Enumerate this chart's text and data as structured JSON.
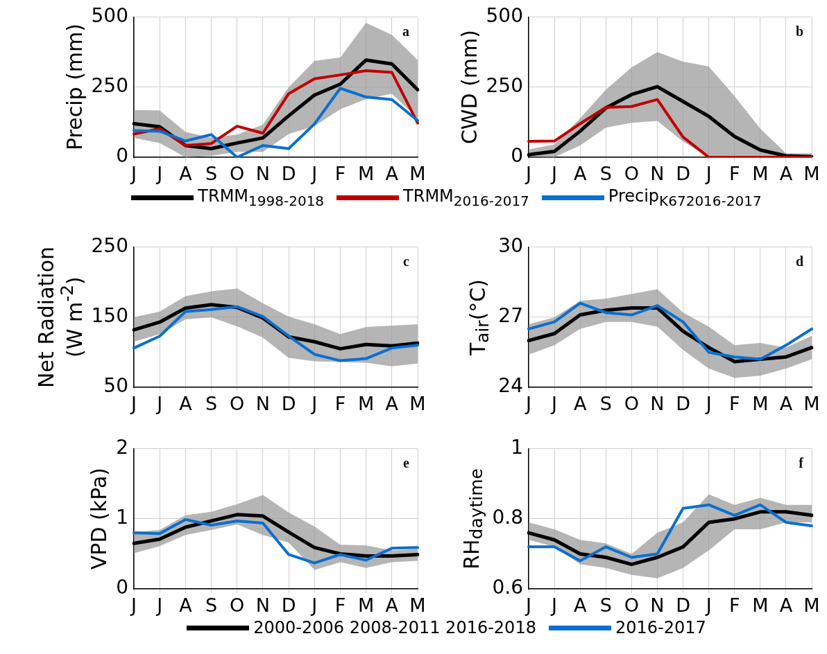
{
  "chart_data": [
    {
      "type": "line",
      "ylabel": "Precip (mm)",
      "categories": [
        "J",
        "J",
        "A",
        "S",
        "O",
        "N",
        "D",
        "J",
        "F",
        "M",
        "A",
        "M"
      ],
      "ylim": [
        0,
        500
      ],
      "yticks": [
        0,
        250,
        500
      ],
      "grid": true,
      "legend": "bottom",
      "annotations": [
        "a"
      ],
      "series": [
        {
          "name": "TRMM$_{1998-2018}$",
          "color": "#000000",
          "values": [
            120,
            109,
            42,
            31,
            51,
            69,
            148,
            222,
            261,
            347,
            333,
            241
          ],
          "lower": [
            69,
            51,
            0,
            5,
            20,
            19,
            83,
            111,
            171,
            208,
            227,
            139
          ],
          "upper": [
            169,
            167,
            90,
            70,
            81,
            116,
            250,
            344,
            356,
            480,
            437,
            347
          ]
        },
        {
          "name": "TRMM$_{2016-2017}$",
          "color": "#c00000",
          "values": [
            83,
            102,
            42,
            49,
            111,
            86,
            227,
            280,
            294,
            309,
            303,
            122
          ]
        },
        {
          "name": "Precip$_{K672016-2017}$",
          "color": "#0a6fd0",
          "values": [
            95,
            93,
            58,
            81,
            0,
            42,
            31,
            119,
            246,
            215,
            206,
            131
          ]
        }
      ]
    },
    {
      "type": "line",
      "ylabel": "CWD (mm)",
      "categories": [
        "J",
        "J",
        "A",
        "S",
        "O",
        "N",
        "D",
        "J",
        "F",
        "M",
        "A",
        "M"
      ],
      "ylim": [
        0,
        500
      ],
      "yticks": [
        0,
        250,
        500
      ],
      "grid": true,
      "annotations": [
        "b"
      ],
      "series": [
        {
          "color": "#000000",
          "values": [
            9,
            21,
            93,
            176,
            224,
            252,
            199,
            146,
            74,
            26,
            5,
            2
          ],
          "lower": [
            2,
            0,
            42,
            106,
            123,
            130,
            56,
            0,
            0,
            0,
            0,
            0
          ],
          "upper": [
            28,
            46,
            139,
            241,
            321,
            375,
            341,
            324,
            218,
            102,
            14,
            14
          ]
        },
        {
          "color": "#c00000",
          "values": [
            57,
            58,
            120,
            178,
            181,
            206,
            72,
            0,
            0,
            0,
            0,
            0
          ]
        }
      ]
    },
    {
      "type": "line",
      "ylabel": "Net Radiation (W m$^{-2}$)",
      "categories": [
        "J",
        "J",
        "A",
        "S",
        "O",
        "N",
        "D",
        "J",
        "F",
        "M",
        "A",
        "M"
      ],
      "ylim": [
        50,
        250
      ],
      "yticks": [
        50,
        150,
        250
      ],
      "grid": true,
      "annotations": [
        "c"
      ],
      "series": [
        {
          "color": "#000000",
          "values": [
            132,
            143,
            163,
            168,
            164,
            149,
            122,
            115,
            105,
            111,
            109,
            113
          ],
          "lower": [
            115,
            126,
            147,
            150,
            137,
            121,
            92,
            87,
            86,
            85,
            80,
            84
          ],
          "upper": [
            150,
            158,
            180,
            187,
            191,
            170,
            151,
            140,
            126,
            136,
            138,
            140
          ]
        },
        {
          "color": "#0a6fd0",
          "values": [
            106,
            123,
            158,
            161,
            165,
            151,
            123,
            97,
            88,
            91,
            106,
            110
          ]
        }
      ]
    },
    {
      "type": "line",
      "ylabel": "T$_{air}$(°C)",
      "categories": [
        "J",
        "J",
        "A",
        "S",
        "O",
        "N",
        "D",
        "J",
        "F",
        "M",
        "A",
        "M"
      ],
      "ylim": [
        24,
        30
      ],
      "yticks": [
        24,
        27,
        30
      ],
      "grid": true,
      "annotations": [
        "d"
      ],
      "series": [
        {
          "color": "#000000",
          "values": [
            26.0,
            26.3,
            27.1,
            27.3,
            27.4,
            27.4,
            26.4,
            25.7,
            25.1,
            25.2,
            25.3,
            25.7
          ],
          "lower": [
            25.4,
            25.8,
            26.5,
            26.8,
            26.8,
            26.6,
            25.6,
            24.8,
            24.4,
            24.5,
            24.8,
            25.2
          ],
          "upper": [
            26.7,
            27.0,
            27.7,
            27.8,
            28.0,
            28.2,
            27.2,
            26.6,
            25.8,
            25.9,
            25.7,
            26.2
          ]
        },
        {
          "color": "#0a6fd0",
          "values": [
            26.5,
            26.8,
            27.6,
            27.2,
            27.1,
            27.5,
            26.8,
            25.5,
            25.3,
            25.2,
            25.8,
            26.5
          ]
        }
      ]
    },
    {
      "type": "line",
      "ylabel": "VPD (kPa)",
      "categories": [
        "J",
        "J",
        "A",
        "S",
        "O",
        "N",
        "D",
        "J",
        "F",
        "M",
        "A",
        "M"
      ],
      "ylim": [
        0,
        2
      ],
      "yticks": [
        0,
        1,
        2
      ],
      "grid": true,
      "legend": "bottom",
      "annotations": [
        "e"
      ],
      "series": [
        {
          "name": "2000-2006 2008-2011 2016-2018",
          "color": "#000000",
          "values": [
            0.65,
            0.71,
            0.88,
            0.97,
            1.06,
            1.04,
            0.81,
            0.59,
            0.5,
            0.47,
            0.47,
            0.49
          ],
          "lower": [
            0.51,
            0.61,
            0.77,
            0.84,
            0.92,
            0.77,
            0.66,
            0.27,
            0.38,
            0.3,
            0.38,
            0.4
          ],
          "upper": [
            0.81,
            0.84,
            1.05,
            1.1,
            1.21,
            1.34,
            1.09,
            0.89,
            0.63,
            0.62,
            0.55,
            0.57
          ]
        },
        {
          "name": "2016-2017",
          "color": "#0a6fd0",
          "values": [
            0.8,
            0.79,
            0.99,
            0.91,
            0.97,
            0.94,
            0.49,
            0.37,
            0.49,
            0.41,
            0.58,
            0.59
          ]
        }
      ]
    },
    {
      "type": "line",
      "ylabel": "RH$_{daytime}$",
      "categories": [
        "J",
        "J",
        "A",
        "S",
        "O",
        "N",
        "D",
        "J",
        "F",
        "M",
        "A",
        "M"
      ],
      "ylim": [
        0.6,
        1
      ],
      "yticks": [
        0.6,
        0.8,
        1
      ],
      "grid": true,
      "annotations": [
        "f"
      ],
      "series": [
        {
          "color": "#000000",
          "values": [
            0.76,
            0.74,
            0.7,
            0.69,
            0.67,
            0.69,
            0.72,
            0.79,
            0.8,
            0.82,
            0.82,
            0.81
          ],
          "lower": [
            0.74,
            0.72,
            0.67,
            0.66,
            0.64,
            0.63,
            0.66,
            0.71,
            0.77,
            0.77,
            0.79,
            0.79
          ],
          "upper": [
            0.79,
            0.77,
            0.74,
            0.73,
            0.7,
            0.76,
            0.79,
            0.87,
            0.84,
            0.86,
            0.84,
            0.84
          ]
        },
        {
          "color": "#0a6fd0",
          "values": [
            0.72,
            0.72,
            0.68,
            0.72,
            0.69,
            0.7,
            0.83,
            0.84,
            0.81,
            0.84,
            0.79,
            0.78
          ]
        }
      ]
    }
  ]
}
